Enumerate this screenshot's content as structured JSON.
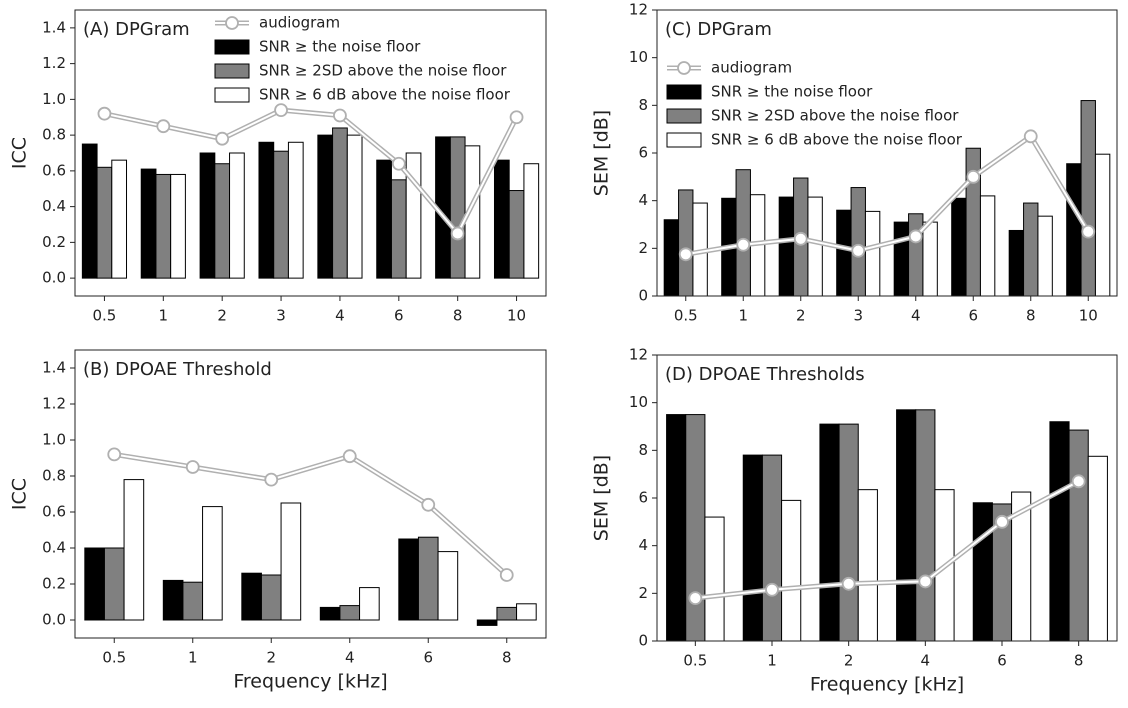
{
  "chart_data": [
    {
      "type": "bar",
      "title": "(A) DPGram",
      "ylabel": "ICC",
      "categories": [
        "0.5",
        "1",
        "2",
        "3",
        "4",
        "6",
        "8",
        "10"
      ],
      "series": [
        {
          "name": "audiogram",
          "type": "line",
          "color": "#b0b0b0",
          "values": [
            0.92,
            0.85,
            0.78,
            0.94,
            0.91,
            0.64,
            0.25,
            0.9
          ]
        },
        {
          "name": "SNR ≥ the noise floor",
          "color": "#000000",
          "values": [
            0.75,
            0.61,
            0.7,
            0.76,
            0.8,
            0.66,
            0.79,
            0.66
          ]
        },
        {
          "name": "SNR ≥ 2SD above the noise floor",
          "color": "#808080",
          "values": [
            0.62,
            0.58,
            0.64,
            0.71,
            0.84,
            0.55,
            0.79,
            0.49
          ]
        },
        {
          "name": "SNR ≥ 6 dB above the noise floor",
          "color": "#ffffff",
          "values": [
            0.66,
            0.58,
            0.7,
            0.76,
            0.8,
            0.7,
            0.74,
            0.64
          ]
        }
      ],
      "ylim": [
        -0.1,
        1.5
      ],
      "yticks": [
        {
          "value": 0,
          "label": "0.0"
        },
        0.2,
        0.4,
        0.6,
        0.8,
        {
          "value": 1,
          "label": "1.0"
        },
        1.2,
        1.4
      ],
      "legend": "upper center"
    },
    {
      "type": "bar",
      "title": "(B) DPOAE Threshold",
      "ylabel": "ICC",
      "xlabel": "Frequency [kHz]",
      "categories": [
        "0.5",
        "1",
        "2",
        "4",
        "6",
        "8"
      ],
      "series": [
        {
          "name": "audiogram",
          "type": "line",
          "color": "#b0b0b0",
          "values": [
            0.92,
            0.85,
            0.78,
            0.91,
            0.64,
            0.25
          ]
        },
        {
          "name": "SNR ≥ the noise floor",
          "color": "#000000",
          "values": [
            0.4,
            0.22,
            0.26,
            0.07,
            0.45,
            -0.03
          ]
        },
        {
          "name": "SNR ≥ 2SD above the noise floor",
          "color": "#808080",
          "values": [
            0.4,
            0.21,
            0.25,
            0.08,
            0.46,
            0.07
          ]
        },
        {
          "name": "SNR ≥ 6 dB above the noise floor",
          "color": "#ffffff",
          "values": [
            0.78,
            0.63,
            0.65,
            0.18,
            0.38,
            0.09
          ]
        }
      ],
      "ylim": [
        -0.1,
        1.5
      ],
      "yticks": [
        {
          "value": 0,
          "label": "0.0"
        },
        0.2,
        0.4,
        0.6,
        0.8,
        {
          "value": 1,
          "label": "1.0"
        },
        1.2,
        1.4
      ],
      "legend": "none"
    },
    {
      "type": "bar",
      "title": "(C) DPGram",
      "ylabel": "SEM  [dB]",
      "categories": [
        "0.5",
        "1",
        "2",
        "3",
        "4",
        "6",
        "8",
        "10"
      ],
      "series": [
        {
          "name": "audiogram",
          "type": "line",
          "color": "#b0b0b0",
          "values": [
            1.75,
            2.15,
            2.4,
            1.9,
            2.5,
            5.0,
            6.7,
            2.7
          ]
        },
        {
          "name": "SNR ≥ the noise floor",
          "color": "#000000",
          "values": [
            3.2,
            4.1,
            4.15,
            3.6,
            3.1,
            4.1,
            2.75,
            5.55
          ]
        },
        {
          "name": "SNR ≥ 2SD above the noise floor",
          "color": "#808080",
          "values": [
            4.45,
            5.3,
            4.95,
            4.55,
            3.45,
            6.2,
            3.9,
            8.2
          ]
        },
        {
          "name": "SNR ≥ 6 dB above the noise floor",
          "color": "#ffffff",
          "values": [
            3.9,
            4.25,
            4.15,
            3.55,
            3.1,
            4.2,
            3.35,
            5.95
          ]
        }
      ],
      "ylim": [
        0,
        12
      ],
      "yticks": [
        0,
        2,
        4,
        6,
        8,
        10,
        12
      ],
      "legend": "upper left"
    },
    {
      "type": "bar",
      "title": "(D) DPOAE Thresholds",
      "ylabel": "SEM [dB]",
      "xlabel": "Frequency [kHz]",
      "categories": [
        "0.5",
        "1",
        "2",
        "4",
        "6",
        "8"
      ],
      "series": [
        {
          "name": "audiogram",
          "type": "line",
          "color": "#b0b0b0",
          "values": [
            1.8,
            2.15,
            2.4,
            2.5,
            5.0,
            6.7
          ]
        },
        {
          "name": "SNR ≥ the noise floor",
          "color": "#000000",
          "values": [
            9.5,
            7.8,
            9.1,
            9.7,
            5.8,
            9.2
          ]
        },
        {
          "name": "SNR ≥ 2SD above the noise floor",
          "color": "#808080",
          "values": [
            9.5,
            7.8,
            9.1,
            9.7,
            5.75,
            8.85
          ]
        },
        {
          "name": "SNR ≥ 6 dB above the noise floor",
          "color": "#ffffff",
          "values": [
            5.2,
            5.9,
            6.35,
            6.35,
            6.25,
            7.75
          ]
        }
      ],
      "ylim": [
        0,
        12
      ],
      "yticks": [
        0,
        2,
        4,
        6,
        8,
        10,
        12
      ],
      "legend": "none"
    }
  ]
}
